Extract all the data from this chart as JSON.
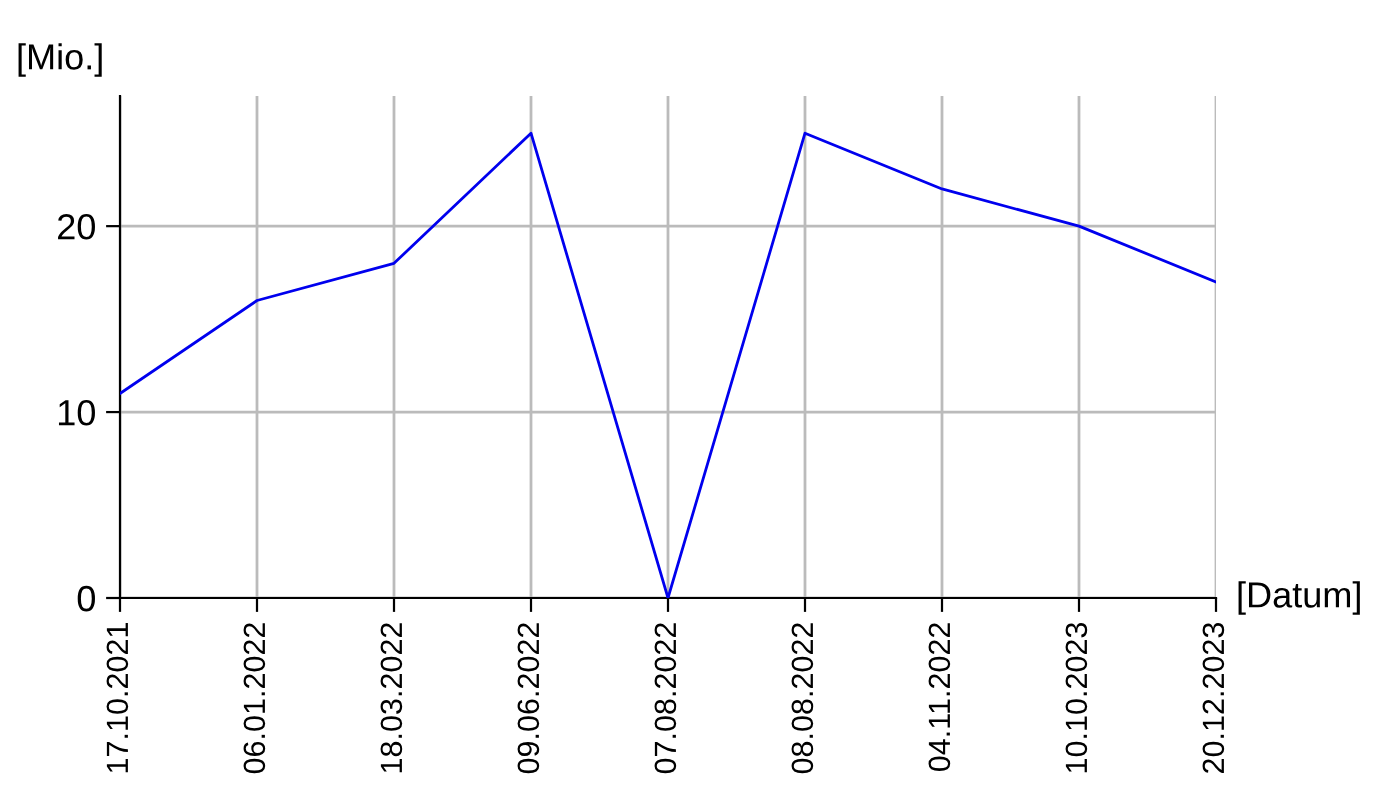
{
  "chart_data": {
    "type": "line",
    "ylabel": "[Mio.]",
    "xlabel": "[Datum]",
    "categories": [
      "17.10.2021",
      "06.01.2022",
      "18.03.2022",
      "09.06.2022",
      "07.08.2022",
      "08.08.2022",
      "04.11.2022",
      "10.10.2023",
      "20.12.2023"
    ],
    "series": [
      {
        "color": "#0000ee",
        "values": [
          11,
          16,
          18,
          25,
          0,
          25,
          22,
          20,
          17
        ]
      }
    ],
    "ylim": [
      0,
      27
    ],
    "yticks": [
      0,
      10,
      20
    ],
    "grid": true,
    "marker": "none",
    "line_style": "solid"
  }
}
